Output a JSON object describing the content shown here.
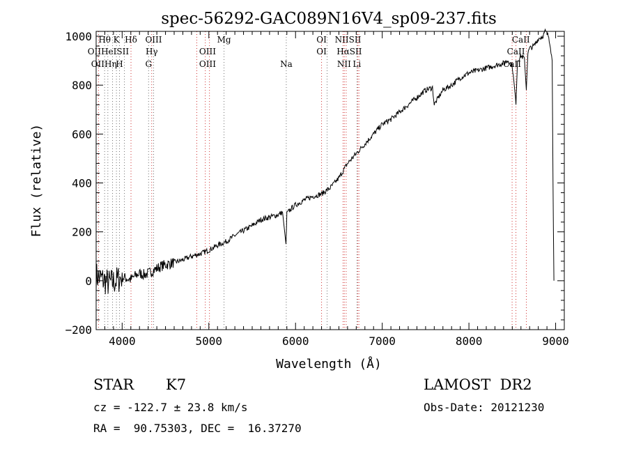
{
  "chart_data": {
    "type": "line",
    "title": "spec-56292-GAC089N16V4_sp09-237.fits",
    "xlabel": "Wavelength (Å)",
    "ylabel": "Flux (relative)",
    "xlim": [
      3700,
      9100
    ],
    "ylim": [
      -200,
      1020
    ],
    "x_ticks": [
      4000,
      5000,
      6000,
      7000,
      8000,
      9000
    ],
    "y_ticks": [
      -200,
      0,
      200,
      400,
      600,
      800,
      1000
    ],
    "series": [
      {
        "x": [
          3700,
          3750,
          3800,
          3850,
          3900,
          3950,
          4000,
          4050,
          4100,
          4150,
          4200,
          4250,
          4300,
          4350,
          4400,
          4450,
          4500,
          4600,
          4700,
          4800,
          4900,
          5000,
          5100,
          5200,
          5300,
          5400,
          5500,
          5600,
          5700,
          5800,
          5850,
          5890,
          5900,
          5950,
          6000,
          6100,
          6200,
          6300,
          6400,
          6500,
          6600,
          6700,
          6800,
          6900,
          7000,
          7100,
          7200,
          7300,
          7400,
          7500,
          7580,
          7600,
          7650,
          7700,
          7800,
          7900,
          8000,
          8100,
          8200,
          8300,
          8400,
          8450,
          8500,
          8530,
          8542,
          8560,
          8600,
          8640,
          8662,
          8680,
          8700,
          8750,
          8800,
          8850,
          8880,
          8920,
          8940,
          8960,
          8970,
          8980
        ],
        "y": [
          20,
          10,
          0,
          -10,
          -5,
          5,
          15,
          10,
          5,
          20,
          30,
          25,
          30,
          40,
          50,
          60,
          65,
          75,
          85,
          100,
          110,
          125,
          145,
          160,
          185,
          205,
          225,
          250,
          260,
          270,
          280,
          150,
          275,
          295,
          310,
          330,
          345,
          355,
          380,
          420,
          480,
          520,
          560,
          600,
          640,
          660,
          690,
          720,
          750,
          780,
          790,
          720,
          750,
          780,
          800,
          830,
          850,
          860,
          870,
          880,
          890,
          900,
          880,
          770,
          720,
          900,
          920,
          910,
          780,
          930,
          950,
          960,
          990,
          1000,
          1020,
          1000,
          960,
          900,
          400,
          0
        ]
      }
    ],
    "line_labels": {
      "top_row": [
        {
          "text": "Hθ",
          "x": 3798
        },
        {
          "text": "K",
          "x": 3934
        },
        {
          "text": "Hδ",
          "x": 4102
        },
        {
          "text": "OIII",
          "x": 4363
        },
        {
          "text": "Mg",
          "x": 5175
        },
        {
          "text": "OI",
          "x": 6300
        },
        {
          "text": "NIISII",
          "x": 6605
        },
        {
          "text": "CaII",
          "x": 8600
        }
      ],
      "middle_row": [
        {
          "text": "OIIHeISII",
          "x": 3840
        },
        {
          "text": "Hγ",
          "x": 4341
        },
        {
          "text": "OIII",
          "x": 4985
        },
        {
          "text": "OI",
          "x": 6300
        },
        {
          "text": "HαSII",
          "x": 6620
        },
        {
          "text": "CaII",
          "x": 8542
        }
      ],
      "bottom_row": [
        {
          "text": "OIIHη",
          "x": 3790
        },
        {
          "text": "H",
          "x": 3969
        },
        {
          "text": "G",
          "x": 4305
        },
        {
          "text": "OIII",
          "x": 4985
        },
        {
          "text": "Na",
          "x": 5893
        },
        {
          "text": "NII",
          "x": 6560
        },
        {
          "text": "Li",
          "x": 6708
        },
        {
          "text": "CaII",
          "x": 8498
        }
      ]
    },
    "emission_lines_red": [
      3727,
      4102,
      4341,
      4861,
      4959,
      5007,
      6300,
      6548,
      6563,
      6584,
      6717,
      6731,
      8498,
      8542,
      8662
    ],
    "absorption_lines_gray": [
      3798,
      3835,
      3889,
      3934,
      3969,
      4026,
      4305,
      4363,
      5175,
      5893,
      6364,
      6708
    ]
  },
  "info": {
    "object_class": "STAR",
    "subclass": "K7",
    "survey": "LAMOST  DR2",
    "redshift_line": "cz = -122.7 ± 23.8 km/s",
    "obs_date_line": "Obs-Date: 20121230",
    "coords_line": "RA =  90.75303, DEC =  16.37270"
  }
}
